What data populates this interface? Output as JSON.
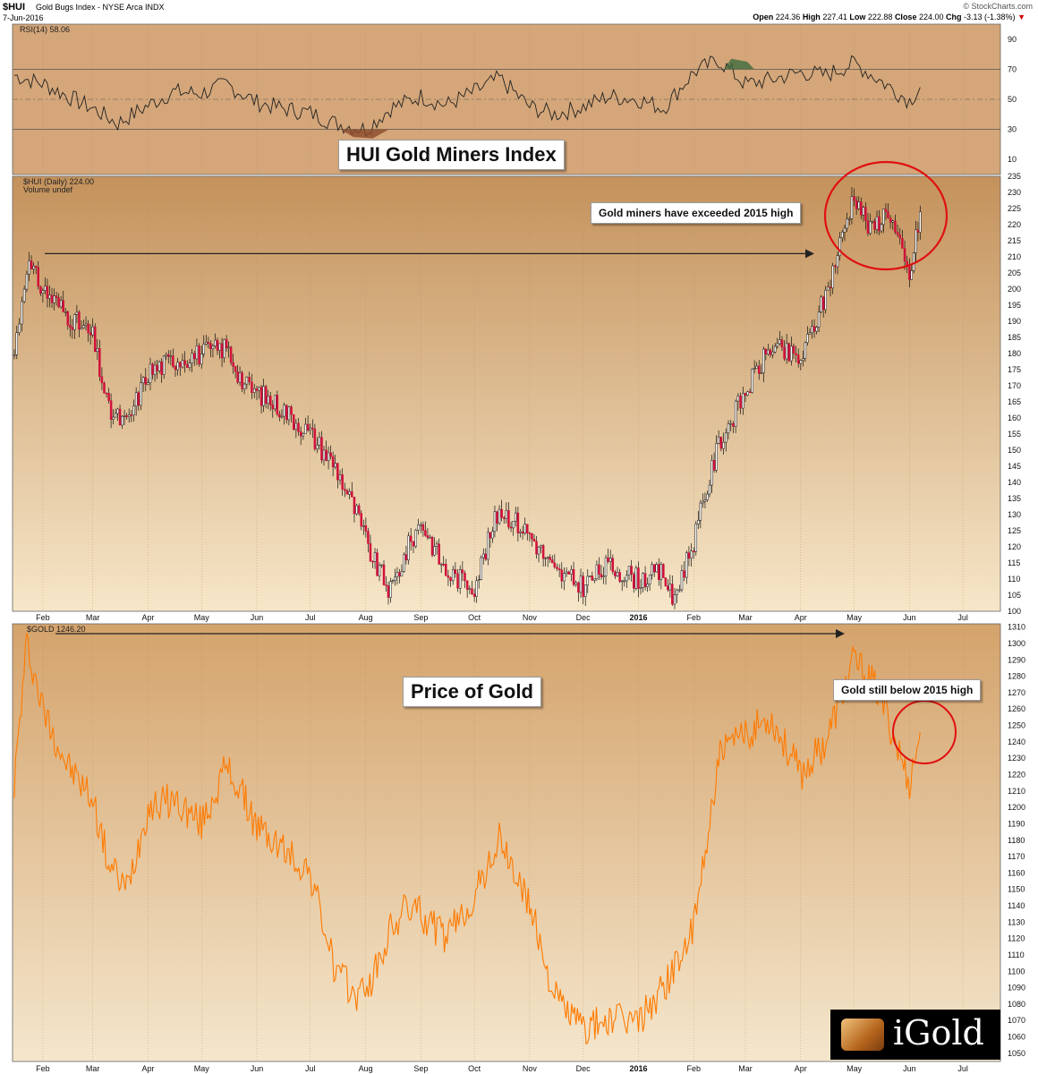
{
  "header": {
    "symbol": "$HUI",
    "subtitle": "Gold Bugs Index - NYSE Arca  INDX",
    "date": "7-Jun-2016",
    "source": "© StockCharts.com",
    "open_label": "Open",
    "open": "224.36",
    "high_label": "High",
    "high": "227.41",
    "low_label": "Low",
    "low": "222.88",
    "close_label": "Close",
    "close": "224.00",
    "chg_label": "Chg",
    "chg": "-3.13 (-1.38%)",
    "chg_arrow": "▼"
  },
  "colors": {
    "panel_top": "#c4925c",
    "panel_bottom": "#f6e6c8",
    "rsi_bg": "#d4a679",
    "up_candle": "#ffffff",
    "down_candle": "#d0103a",
    "wick": "#111111",
    "gold_line": "#ff7a00",
    "callout_circle": "#e01010"
  },
  "annotations": {
    "hui_title": "HUI Gold Miners Index",
    "gold_title": "Price of Gold",
    "hui_note": "Gold miners have exceeded 2015 high",
    "gold_note": "Gold still below 2015 high"
  },
  "logo": {
    "text": "iGold"
  },
  "chart_data": [
    {
      "type": "line",
      "panel": "rsi",
      "title": "RSI(14) 58.06",
      "ylim": [
        0,
        100
      ],
      "yticks": [
        10,
        30,
        50,
        70,
        90
      ],
      "reference_lines": [
        30,
        50,
        70
      ],
      "x": [
        "2015-01-16",
        "2015-02-02",
        "2015-02-15",
        "2015-03-01",
        "2015-03-15",
        "2015-04-01",
        "2015-04-15",
        "2015-05-01",
        "2015-05-15",
        "2015-06-01",
        "2015-06-15",
        "2015-07-01",
        "2015-07-15",
        "2015-08-01",
        "2015-08-15",
        "2015-09-01",
        "2015-09-15",
        "2015-10-01",
        "2015-10-15",
        "2015-11-01",
        "2015-11-15",
        "2015-12-01",
        "2015-12-15",
        "2016-01-01",
        "2016-01-15",
        "2016-02-01",
        "2016-02-15",
        "2016-03-01",
        "2016-03-15",
        "2016-04-01",
        "2016-04-15",
        "2016-05-01",
        "2016-05-15",
        "2016-06-01",
        "2016-06-07"
      ],
      "values": [
        66,
        60,
        52,
        44,
        34,
        46,
        55,
        54,
        60,
        48,
        44,
        41,
        34,
        30,
        44,
        52,
        46,
        55,
        64,
        45,
        40,
        45,
        52,
        50,
        44,
        68,
        76,
        60,
        63,
        68,
        66,
        74,
        63,
        49,
        58
      ]
    },
    {
      "type": "candlestick",
      "panel": "hui",
      "title": "$HUI (Daily) 224.00",
      "subtitle": "Volume undef",
      "ylim": [
        100,
        235
      ],
      "yticks": [
        100,
        105,
        110,
        115,
        120,
        125,
        130,
        135,
        140,
        145,
        150,
        155,
        160,
        165,
        170,
        175,
        180,
        185,
        190,
        195,
        200,
        205,
        210,
        215,
        220,
        225,
        230,
        235
      ],
      "x": [
        "2015-01-16",
        "2015-01-23",
        "2015-02-01",
        "2015-02-15",
        "2015-03-01",
        "2015-03-10",
        "2015-03-20",
        "2015-04-01",
        "2015-04-15",
        "2015-05-01",
        "2015-05-15",
        "2015-05-25",
        "2015-06-01",
        "2015-06-15",
        "2015-07-01",
        "2015-07-15",
        "2015-07-27",
        "2015-08-05",
        "2015-08-15",
        "2015-08-25",
        "2015-09-01",
        "2015-09-15",
        "2015-10-01",
        "2015-10-15",
        "2015-11-01",
        "2015-11-15",
        "2015-12-01",
        "2015-12-15",
        "2016-01-01",
        "2016-01-15",
        "2016-01-20",
        "2016-02-01",
        "2016-02-15",
        "2016-03-01",
        "2016-03-15",
        "2016-04-01",
        "2016-04-15",
        "2016-05-01",
        "2016-05-10",
        "2016-05-20",
        "2016-06-01",
        "2016-06-07"
      ],
      "values": [
        180,
        208,
        200,
        192,
        185,
        162,
        158,
        174,
        178,
        180,
        182,
        170,
        168,
        163,
        155,
        145,
        130,
        116,
        106,
        120,
        128,
        112,
        108,
        132,
        124,
        112,
        108,
        114,
        110,
        112,
        103,
        122,
        152,
        168,
        182,
        178,
        198,
        230,
        218,
        225,
        203,
        224
      ]
    },
    {
      "type": "line",
      "panel": "gold",
      "title": "$GOLD 1246.20",
      "ylim": [
        1045,
        1312
      ],
      "yticks": [
        1050,
        1060,
        1070,
        1080,
        1090,
        1100,
        1110,
        1120,
        1130,
        1140,
        1150,
        1160,
        1170,
        1180,
        1190,
        1200,
        1210,
        1220,
        1230,
        1240,
        1250,
        1260,
        1270,
        1280,
        1290,
        1300,
        1310
      ],
      "x": [
        "2015-01-16",
        "2015-01-23",
        "2015-02-01",
        "2015-02-15",
        "2015-03-01",
        "2015-03-10",
        "2015-03-20",
        "2015-04-01",
        "2015-04-15",
        "2015-05-01",
        "2015-05-15",
        "2015-05-25",
        "2015-06-01",
        "2015-06-15",
        "2015-07-01",
        "2015-07-15",
        "2015-07-27",
        "2015-08-05",
        "2015-08-15",
        "2015-08-25",
        "2015-09-01",
        "2015-09-15",
        "2015-10-01",
        "2015-10-15",
        "2015-11-01",
        "2015-11-15",
        "2015-12-01",
        "2015-12-15",
        "2016-01-01",
        "2016-01-15",
        "2016-02-01",
        "2016-02-15",
        "2016-03-01",
        "2016-03-15",
        "2016-04-01",
        "2016-04-15",
        "2016-05-01",
        "2016-05-15",
        "2016-06-01",
        "2016-06-07"
      ],
      "values": [
        1215,
        1300,
        1260,
        1225,
        1205,
        1165,
        1150,
        1200,
        1205,
        1190,
        1225,
        1205,
        1188,
        1175,
        1160,
        1100,
        1085,
        1095,
        1125,
        1140,
        1135,
        1120,
        1145,
        1180,
        1140,
        1085,
        1065,
        1070,
        1070,
        1090,
        1125,
        1230,
        1245,
        1255,
        1220,
        1240,
        1290,
        1270,
        1215,
        1246
      ]
    }
  ],
  "axes": {
    "month_ticks": [
      "Feb",
      "Mar",
      "Apr",
      "May",
      "Jun",
      "Jul",
      "Aug",
      "Sep",
      "Oct",
      "Nov",
      "Dec",
      "2016",
      "Feb",
      "Mar",
      "Apr",
      "May",
      "Jun",
      "Jul"
    ],
    "rsi_label": "RSI(14) 58.06",
    "hui_label": "$HUI (Daily) 224.00",
    "hui_volume": "Volume undef",
    "gold_label": "$GOLD 1246.20"
  }
}
